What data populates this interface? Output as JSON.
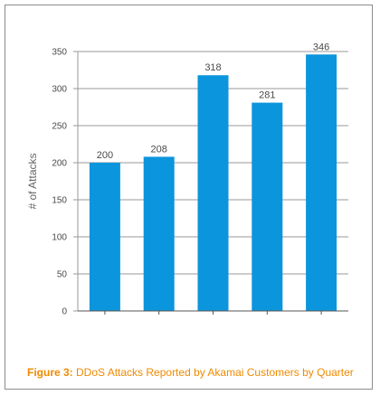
{
  "colors": {
    "bar": "#0b95dc",
    "grid": "#9a9a9a",
    "caption": "#f08a00"
  },
  "caption": {
    "prefix": "Figure 3:",
    "text": "DDoS Attacks Reported by Akamai Customers by Quarter"
  },
  "chart_data": {
    "type": "bar",
    "categories": [
      "",
      "",
      "",
      "",
      ""
    ],
    "values": [
      200,
      208,
      318,
      281,
      346
    ],
    "data_labels": [
      "200",
      "208",
      "318",
      "281",
      "346"
    ],
    "ylabel": "# of Attacks",
    "xlabel": "",
    "ylim": [
      0,
      350
    ],
    "yticks": [
      0,
      50,
      100,
      150,
      200,
      250,
      300,
      350
    ],
    "grid": true
  }
}
